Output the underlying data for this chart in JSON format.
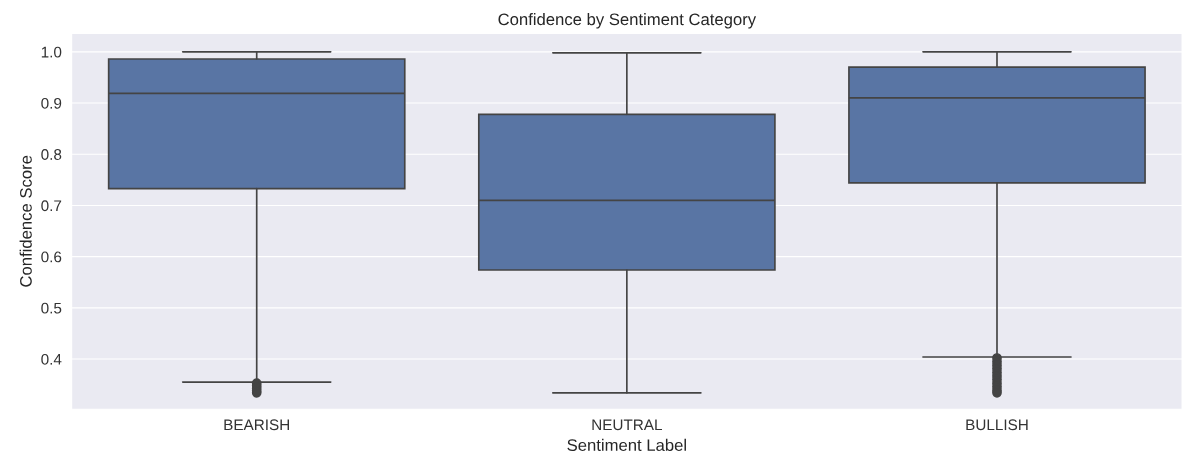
{
  "chart_data": {
    "type": "box",
    "title": "Confidence by Sentiment Category",
    "xlabel": "Sentiment Label",
    "ylabel": "Confidence Score",
    "categories": [
      "BEARISH",
      "NEUTRAL",
      "BULLISH"
    ],
    "color": "#5975a4",
    "boxes": [
      {
        "low": 0.355,
        "q1": 0.733,
        "median": 0.919,
        "q3": 0.986,
        "high": 1.0,
        "outliers": [
          0.353,
          0.348,
          0.343,
          0.338,
          0.334
        ]
      },
      {
        "low": 0.334,
        "q1": 0.574,
        "median": 0.71,
        "q3": 0.878,
        "high": 0.998
      },
      {
        "low": 0.404,
        "q1": 0.744,
        "median": 0.91,
        "q3": 0.97,
        "high": 1.0,
        "outliers": [
          0.402,
          0.395,
          0.388,
          0.381,
          0.374,
          0.367,
          0.36,
          0.353,
          0.346,
          0.339,
          0.334
        ]
      }
    ],
    "ylim": [
      0.302,
      1.036
    ],
    "yticks": [
      0.4,
      0.5,
      0.6,
      0.7,
      0.8,
      0.9,
      {
        "value": 1.0,
        "label": "1.0"
      }
    ],
    "grid": "y"
  }
}
